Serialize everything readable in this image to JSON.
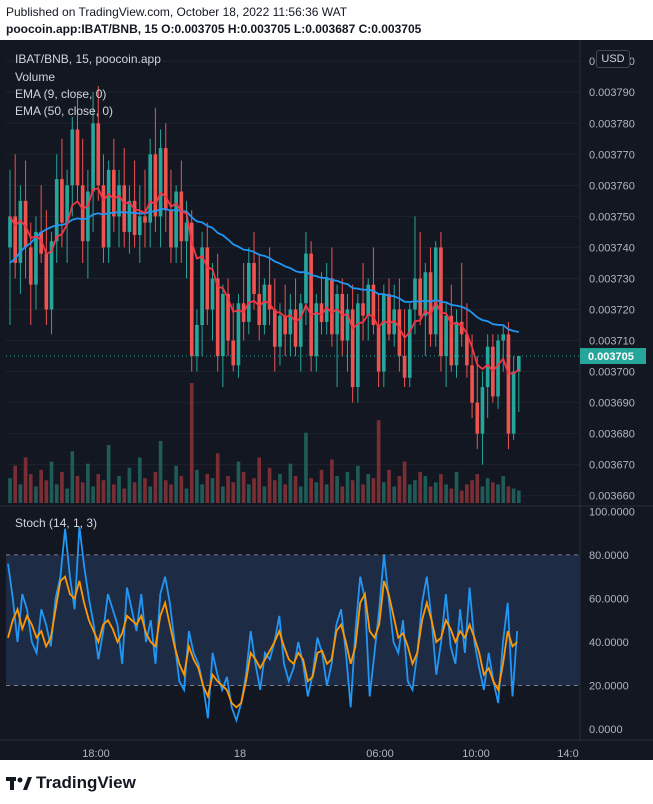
{
  "header": {
    "published": "Published on TradingView.com, October 18, 2022 11:56:36 WAT",
    "ohlc": "poocoin.app:IBAT/BNB, 15  O:0.003705 H:0.003705 L:0.003687 C:0.003705"
  },
  "legend": {
    "symbol": "IBAT/BNB, 15, poocoin.app",
    "volume": "Volume",
    "ema9": "EMA (9, close, 0)",
    "ema50": "EMA (50, close, 0)",
    "stoch": "Stoch (14, 1, 3)"
  },
  "currency": "USD",
  "last_price_label": "0.003705",
  "footer": {
    "brand": "TradingView"
  },
  "colors": {
    "up": "#26a69a",
    "down": "#ef5350",
    "ema9": "#f23645",
    "ema50": "#2196f3",
    "stoch_k": "#2196f3",
    "stoch_d": "#ff9800",
    "stoch_band": "#1e2b45",
    "background": "#131722"
  },
  "chart_data": [
    {
      "type": "candlestick",
      "title": "IBAT/BNB, 15, poocoin.app",
      "price_axis": {
        "ticks": [
          "0.003800",
          "0.003790",
          "0.003780",
          "0.003770",
          "0.003760",
          "0.003750",
          "0.003740",
          "0.003730",
          "0.003720",
          "0.003710",
          "0.003700",
          "0.003690",
          "0.003680",
          "0.003670",
          "0.003660"
        ],
        "range": [
          0.003657,
          0.003802
        ]
      },
      "time_axis": {
        "labels": [
          "18:00",
          "18",
          "06:00",
          "10:00",
          "14:0"
        ]
      },
      "candles": [
        [
          0.00374,
          0.003765,
          0.003715,
          0.00375
        ],
        [
          0.00375,
          0.00377,
          0.00373,
          0.003735
        ],
        [
          0.003735,
          0.00376,
          0.003725,
          0.003755
        ],
        [
          0.003755,
          0.003768,
          0.00373,
          0.00374
        ],
        [
          0.00374,
          0.003748,
          0.003715,
          0.003728
        ],
        [
          0.003728,
          0.00375,
          0.00372,
          0.003745
        ],
        [
          0.003745,
          0.00376,
          0.003735,
          0.003738
        ],
        [
          0.003738,
          0.003752,
          0.003715,
          0.00372
        ],
        [
          0.00372,
          0.003745,
          0.003712,
          0.003742
        ],
        [
          0.003742,
          0.00377,
          0.003735,
          0.003762
        ],
        [
          0.003762,
          0.003775,
          0.00374,
          0.003748
        ],
        [
          0.003748,
          0.003765,
          0.003735,
          0.00376
        ],
        [
          0.00376,
          0.003782,
          0.00375,
          0.003778
        ],
        [
          0.003778,
          0.00379,
          0.003755,
          0.00376
        ],
        [
          0.00376,
          0.003775,
          0.003735,
          0.003742
        ],
        [
          0.003742,
          0.003765,
          0.00373,
          0.003758
        ],
        [
          0.003758,
          0.00379,
          0.003745,
          0.00378
        ],
        [
          0.00378,
          0.003792,
          0.003755,
          0.00376
        ],
        [
          0.00376,
          0.00377,
          0.003735,
          0.00374
        ],
        [
          0.00374,
          0.003768,
          0.003735,
          0.003765
        ],
        [
          0.003765,
          0.003775,
          0.003745,
          0.00375
        ],
        [
          0.00375,
          0.003765,
          0.00374,
          0.00376
        ],
        [
          0.00376,
          0.003772,
          0.00374,
          0.003745
        ],
        [
          0.003745,
          0.00376,
          0.003738,
          0.003755
        ],
        [
          0.003755,
          0.003768,
          0.00374,
          0.003744
        ],
        [
          0.003744,
          0.00376,
          0.003735,
          0.00375
        ],
        [
          0.00375,
          0.003765,
          0.00374,
          0.003748
        ],
        [
          0.003748,
          0.003775,
          0.00374,
          0.00377
        ],
        [
          0.00377,
          0.003785,
          0.003745,
          0.00375
        ],
        [
          0.00375,
          0.003778,
          0.00374,
          0.003772
        ],
        [
          0.003772,
          0.00378,
          0.003745,
          0.003752
        ],
        [
          0.003752,
          0.003765,
          0.003735,
          0.00374
        ],
        [
          0.00374,
          0.00376,
          0.003735,
          0.003758
        ],
        [
          0.003758,
          0.003768,
          0.003735,
          0.003742
        ],
        [
          0.003742,
          0.003755,
          0.00373,
          0.003748
        ],
        [
          0.003748,
          0.003752,
          0.0037,
          0.003705
        ],
        [
          0.003705,
          0.00372,
          0.0037,
          0.003715
        ],
        [
          0.003715,
          0.003745,
          0.003705,
          0.00374
        ],
        [
          0.00374,
          0.003748,
          0.003715,
          0.00372
        ],
        [
          0.00372,
          0.003735,
          0.00371,
          0.00373
        ],
        [
          0.00373,
          0.003738,
          0.0037,
          0.003705
        ],
        [
          0.003705,
          0.003728,
          0.003695,
          0.003725
        ],
        [
          0.003725,
          0.00373,
          0.003705,
          0.00371
        ],
        [
          0.00371,
          0.003722,
          0.0037,
          0.003702
        ],
        [
          0.003702,
          0.003725,
          0.003698,
          0.003722
        ],
        [
          0.003722,
          0.003735,
          0.00371,
          0.003716
        ],
        [
          0.003716,
          0.00374,
          0.003712,
          0.003735
        ],
        [
          0.003735,
          0.003745,
          0.00372,
          0.003725
        ],
        [
          0.003725,
          0.003738,
          0.00371,
          0.003715
        ],
        [
          0.003715,
          0.00373,
          0.003712,
          0.003728
        ],
        [
          0.003728,
          0.00374,
          0.003715,
          0.00372
        ],
        [
          0.00372,
          0.00373,
          0.0037,
          0.003708
        ],
        [
          0.003708,
          0.003722,
          0.003702,
          0.003718
        ],
        [
          0.003718,
          0.003728,
          0.003705,
          0.003712
        ],
        [
          0.003712,
          0.003725,
          0.003705,
          0.00372
        ],
        [
          0.00372,
          0.00373,
          0.003705,
          0.003708
        ],
        [
          0.003708,
          0.003725,
          0.0037,
          0.003722
        ],
        [
          0.003722,
          0.003745,
          0.003715,
          0.003738
        ],
        [
          0.003738,
          0.003742,
          0.0037,
          0.003705
        ],
        [
          0.003705,
          0.003725,
          0.0037,
          0.003722
        ],
        [
          0.003722,
          0.003732,
          0.003712,
          0.003716
        ],
        [
          0.003716,
          0.003735,
          0.003712,
          0.00373
        ],
        [
          0.00373,
          0.00374,
          0.003708,
          0.003712
        ],
        [
          0.003712,
          0.003728,
          0.003695,
          0.003725
        ],
        [
          0.003725,
          0.00373,
          0.003705,
          0.00371
        ],
        [
          0.00371,
          0.003725,
          0.0037,
          0.00372
        ],
        [
          0.00372,
          0.003728,
          0.00369,
          0.003695
        ],
        [
          0.003695,
          0.003725,
          0.00369,
          0.003722
        ],
        [
          0.003722,
          0.003735,
          0.00371,
          0.003718
        ],
        [
          0.003718,
          0.00373,
          0.00371,
          0.003728
        ],
        [
          0.003728,
          0.00374,
          0.003712,
          0.003715
        ],
        [
          0.003715,
          0.003725,
          0.003695,
          0.0037
        ],
        [
          0.0037,
          0.003728,
          0.003695,
          0.003725
        ],
        [
          0.003725,
          0.00373,
          0.00371,
          0.003712
        ],
        [
          0.003712,
          0.003728,
          0.003708,
          0.00372
        ],
        [
          0.00372,
          0.00373,
          0.0037,
          0.003705
        ],
        [
          0.003705,
          0.00372,
          0.003695,
          0.003698
        ],
        [
          0.003698,
          0.003722,
          0.003695,
          0.00372
        ],
        [
          0.00372,
          0.00375,
          0.003712,
          0.00373
        ],
        [
          0.00373,
          0.003745,
          0.003715,
          0.003718
        ],
        [
          0.003718,
          0.003735,
          0.003705,
          0.003732
        ],
        [
          0.003732,
          0.00374,
          0.003708,
          0.003712
        ],
        [
          0.003712,
          0.003742,
          0.003708,
          0.00374
        ],
        [
          0.00374,
          0.003745,
          0.0037,
          0.003705
        ],
        [
          0.003705,
          0.003722,
          0.003695,
          0.003718
        ],
        [
          0.003718,
          0.003728,
          0.0037,
          0.003702
        ],
        [
          0.003702,
          0.00372,
          0.003698,
          0.003716
        ],
        [
          0.003716,
          0.003735,
          0.003708,
          0.003712
        ],
        [
          0.003712,
          0.003722,
          0.003698,
          0.003702
        ],
        [
          0.003702,
          0.003712,
          0.003685,
          0.00369
        ],
        [
          0.00369,
          0.003705,
          0.003675,
          0.00368
        ],
        [
          0.00368,
          0.0037,
          0.00367,
          0.003695
        ],
        [
          0.003695,
          0.003712,
          0.003685,
          0.003708
        ],
        [
          0.003708,
          0.003712,
          0.00369,
          0.003692
        ],
        [
          0.003692,
          0.003712,
          0.003688,
          0.00371
        ],
        [
          0.00371,
          0.003715,
          0.0037,
          0.003712
        ],
        [
          0.003712,
          0.003716,
          0.003675,
          0.00368
        ],
        [
          0.00368,
          0.003705,
          0.003678,
          0.0037
        ],
        [
          0.0037,
          0.003705,
          0.003687,
          0.003705
        ]
      ],
      "volume": [
        12,
        18,
        9,
        22,
        14,
        8,
        16,
        11,
        20,
        9,
        15,
        7,
        25,
        13,
        10,
        19,
        8,
        14,
        11,
        28,
        9,
        13,
        7,
        17,
        10,
        22,
        12,
        8,
        15,
        30,
        11,
        9,
        18,
        13,
        7,
        58,
        16,
        9,
        14,
        12,
        24,
        8,
        13,
        10,
        20,
        15,
        9,
        12,
        22,
        8,
        17,
        11,
        14,
        9,
        19,
        13,
        8,
        34,
        12,
        10,
        16,
        9,
        21,
        13,
        8,
        15,
        11,
        18,
        9,
        14,
        12,
        40,
        10,
        16,
        8,
        13,
        20,
        9,
        11,
        15,
        13,
        8,
        10,
        14,
        9,
        7,
        15,
        6,
        9,
        11,
        14,
        8,
        12,
        10,
        9,
        13,
        8,
        7,
        6
      ],
      "ema9_last": 0.0037,
      "ema50_last": 0.003713,
      "last_price": 0.003705
    },
    {
      "type": "line",
      "title": "Stoch (14, 1, 3)",
      "y_axis": {
        "ticks": [
          "100.0000",
          "80.0000",
          "60.0000",
          "40.0000",
          "20.0000",
          "0.0000"
        ],
        "range": [
          -5,
          102
        ]
      },
      "bands": [
        20,
        80
      ],
      "series": [
        {
          "name": "%K",
          "values": [
            76,
            60,
            40,
            62,
            55,
            40,
            35,
            55,
            48,
            38,
            60,
            70,
            92,
            70,
            55,
            93,
            75,
            60,
            48,
            32,
            45,
            62,
            55,
            48,
            30,
            65,
            55,
            45,
            62,
            40,
            50,
            30,
            62,
            70,
            58,
            40,
            22,
            18,
            45,
            35,
            30,
            20,
            5,
            35,
            25,
            18,
            24,
            10,
            4,
            12,
            25,
            45,
            30,
            18,
            35,
            32,
            40,
            52,
            30,
            22,
            28,
            40,
            30,
            15,
            25,
            42,
            35,
            20,
            30,
            48,
            55,
            35,
            10,
            45,
            70,
            60,
            15,
            35,
            55,
            80,
            60,
            40,
            35,
            50,
            22,
            18,
            35,
            58,
            70,
            50,
            25,
            40,
            62,
            38,
            30,
            55,
            35,
            65,
            40,
            28,
            18,
            35,
            22,
            12,
            40,
            58,
            15,
            45
          ]
        },
        {
          "name": "%D",
          "values": [
            42,
            50,
            55,
            46,
            52,
            48,
            42,
            45,
            38,
            42,
            55,
            68,
            70,
            62,
            60,
            68,
            58,
            50,
            45,
            40,
            48,
            50,
            46,
            40,
            44,
            52,
            50,
            48,
            52,
            44,
            40,
            38,
            52,
            58,
            48,
            38,
            30,
            25,
            38,
            32,
            28,
            20,
            15,
            25,
            22,
            20,
            18,
            12,
            10,
            12,
            22,
            35,
            32,
            28,
            32,
            36,
            40,
            45,
            38,
            32,
            30,
            35,
            32,
            22,
            24,
            35,
            36,
            30,
            32,
            45,
            48,
            40,
            30,
            38,
            58,
            62,
            45,
            42,
            48,
            68,
            62,
            52,
            42,
            44,
            38,
            30,
            35,
            50,
            58,
            50,
            40,
            42,
            50,
            46,
            40,
            45,
            42,
            48,
            42,
            35,
            25,
            28,
            22,
            18,
            30,
            45,
            38,
            40
          ]
        }
      ]
    }
  ]
}
